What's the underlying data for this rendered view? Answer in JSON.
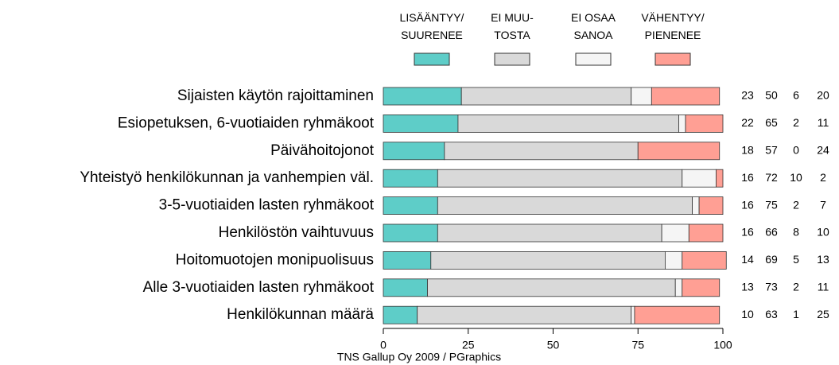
{
  "chart_data": {
    "type": "stacked-bar-horizontal",
    "categories": [
      "Sijaisten käytön rajoittaminen",
      "Esiopetuksen, 6-vuotiaiden ryhmäkoot",
      "Päivähoitojonot",
      "Yhteistyö henkilökunnan ja vanhempien väl.",
      "3-5-vuotiaiden lasten ryhmäkoot",
      "Henkilöstön vaihtuvuus",
      "Hoitomuotojen monipuolisuus",
      "Alle 3-vuotiaiden lasten ryhmäkoot",
      "Henkilökunnan määrä"
    ],
    "series": [
      {
        "name": "LISÄÄNTYY/\nSUURENEE",
        "color": "#5ecdc8",
        "values": [
          23,
          22,
          18,
          16,
          16,
          16,
          14,
          13,
          10
        ]
      },
      {
        "name": "EI MUU-\nTOSTA",
        "color": "#d9d9d9",
        "values": [
          50,
          65,
          57,
          72,
          75,
          66,
          69,
          73,
          63
        ]
      },
      {
        "name": "EI OSAA\nSANOA",
        "color": "#f5f5f5",
        "values": [
          6,
          2,
          0,
          10,
          2,
          8,
          5,
          2,
          1
        ]
      },
      {
        "name": "VÄHENTYY/\nPIENENEE",
        "color": "#ff9f94",
        "values": [
          20,
          11,
          24,
          2,
          7,
          10,
          13,
          11,
          25
        ]
      }
    ],
    "xlim": [
      0,
      100
    ],
    "xticks": [
      0,
      25,
      50,
      75,
      100
    ],
    "footer": "TNS Gallup Oy 2009 / PGraphics"
  }
}
